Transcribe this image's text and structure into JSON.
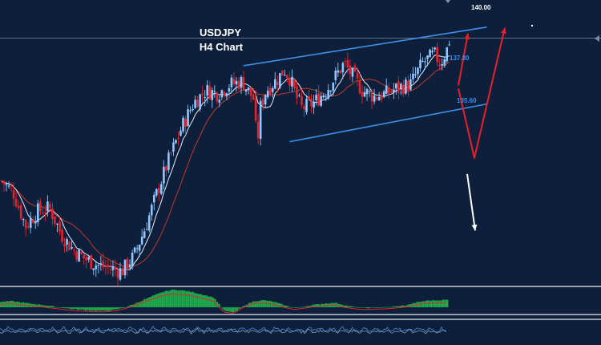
{
  "chart_data": {
    "type": "candlestick",
    "title": "USDJPY",
    "subtitle": "H4 Chart",
    "price_range": [
      131.5,
      141.0
    ],
    "levels": [
      {
        "label": "140.00",
        "value": 140.0,
        "color": "#ffffff"
      },
      {
        "label": "137.80",
        "value": 137.8,
        "color": "#3f8fe8"
      },
      {
        "label": "135.60",
        "value": 135.6,
        "color": "#3f8fe8"
      }
    ],
    "channel": {
      "upper": [
        [
          0.405,
          138.82
        ],
        [
          0.81,
          140.1
        ]
      ],
      "lower": [
        [
          0.482,
          136.3
        ],
        [
          0.81,
          137.55
        ]
      ]
    },
    "scenarios": [
      {
        "direction": "up",
        "color": "#e8202a",
        "from": 137.8,
        "to": 140.0
      },
      {
        "direction": "pullback-then-up",
        "color": "#e8202a",
        "from": 137.8,
        "via": 135.6,
        "to": 140.0
      },
      {
        "direction": "down",
        "color": "#ffffff",
        "from": 135.6,
        "to": 133.3
      }
    ],
    "close_path": [
      [
        0.0,
        135.0
      ],
      [
        0.02,
        134.6
      ],
      [
        0.04,
        133.5
      ],
      [
        0.06,
        134.0
      ],
      [
        0.08,
        134.1
      ],
      [
        0.1,
        133.2
      ],
      [
        0.12,
        132.7
      ],
      [
        0.14,
        132.4
      ],
      [
        0.16,
        132.2
      ],
      [
        0.18,
        132.1
      ],
      [
        0.2,
        132.0
      ],
      [
        0.22,
        132.5
      ],
      [
        0.24,
        133.5
      ],
      [
        0.26,
        134.7
      ],
      [
        0.28,
        135.8
      ],
      [
        0.3,
        136.8
      ],
      [
        0.32,
        137.6
      ],
      [
        0.34,
        138.0
      ],
      [
        0.36,
        137.9
      ],
      [
        0.38,
        138.2
      ],
      [
        0.4,
        138.3
      ],
      [
        0.42,
        137.7
      ],
      [
        0.425,
        136.0
      ],
      [
        0.43,
        137.4
      ],
      [
        0.44,
        138.0
      ],
      [
        0.46,
        138.4
      ],
      [
        0.47,
        138.7
      ],
      [
        0.48,
        138.4
      ],
      [
        0.49,
        137.8
      ],
      [
        0.5,
        137.4
      ],
      [
        0.52,
        137.6
      ],
      [
        0.54,
        138.0
      ],
      [
        0.56,
        138.6
      ],
      [
        0.57,
        138.9
      ],
      [
        0.58,
        138.6
      ],
      [
        0.6,
        138.0
      ],
      [
        0.62,
        137.8
      ],
      [
        0.64,
        137.9
      ],
      [
        0.66,
        138.1
      ],
      [
        0.68,
        138.2
      ],
      [
        0.7,
        138.9
      ],
      [
        0.72,
        139.2
      ],
      [
        0.73,
        138.9
      ],
      [
        0.74,
        139.3
      ],
      [
        0.75,
        140.0
      ]
    ],
    "macd_histogram": [
      0.3,
      0.35,
      0.28,
      0.2,
      0.14,
      0.06,
      -0.02,
      -0.1,
      -0.14,
      -0.18,
      -0.2,
      -0.16,
      -0.05,
      0.15,
      0.4,
      0.65,
      0.88,
      1.0,
      0.95,
      0.85,
      0.7,
      0.55,
      -0.2,
      -0.3,
      0.1,
      0.35,
      0.4,
      0.3,
      0.1,
      -0.05,
      0.05,
      0.15,
      0.22,
      0.25,
      0.1,
      0.0,
      -0.05,
      -0.02,
      0.0,
      0.05,
      0.12,
      0.28,
      0.38,
      0.4,
      0.42
    ]
  }
}
